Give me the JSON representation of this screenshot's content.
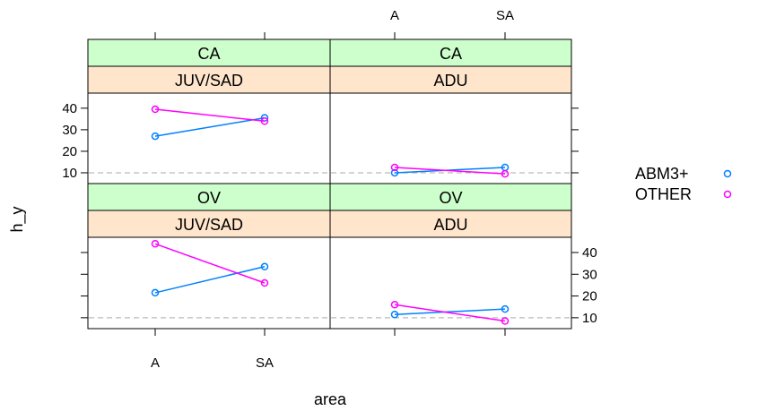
{
  "chart_data": {
    "type": "line",
    "xlabel": "area",
    "ylabel": "h_y",
    "categories": [
      "A",
      "SA"
    ],
    "ylim": [
      5,
      47
    ],
    "yticks": [
      10,
      20,
      30,
      40
    ],
    "reference_line": 10,
    "colors": {
      "strip_top": "#ccffcc",
      "strip_bottom": "#ffe5cc",
      "reference": "#bbbbbb"
    },
    "series_styles": [
      {
        "name": "ABM3+",
        "color": "#0080ff"
      },
      {
        "name": "OTHER",
        "color": "#ff00ff"
      }
    ],
    "panels": [
      {
        "strips": [
          "CA",
          "JUV/SAD"
        ],
        "series": [
          {
            "name": "ABM3+",
            "values": [
              27,
              35.5
            ]
          },
          {
            "name": "OTHER",
            "values": [
              39.5,
              34
            ]
          }
        ]
      },
      {
        "strips": [
          "CA",
          "ADU"
        ],
        "series": [
          {
            "name": "ABM3+",
            "values": [
              10,
              12.5
            ]
          },
          {
            "name": "OTHER",
            "values": [
              12.5,
              9.5
            ]
          }
        ]
      },
      {
        "strips": [
          "OV",
          "JUV/SAD"
        ],
        "series": [
          {
            "name": "ABM3+",
            "values": [
              21.5,
              33.5
            ]
          },
          {
            "name": "OTHER",
            "values": [
              44,
              26
            ]
          }
        ]
      },
      {
        "strips": [
          "OV",
          "ADU"
        ],
        "series": [
          {
            "name": "ABM3+",
            "values": [
              11.5,
              14
            ]
          },
          {
            "name": "OTHER",
            "values": [
              16,
              8.5
            ]
          }
        ]
      }
    ]
  },
  "legend": [
    "ABM3+",
    "OTHER"
  ]
}
